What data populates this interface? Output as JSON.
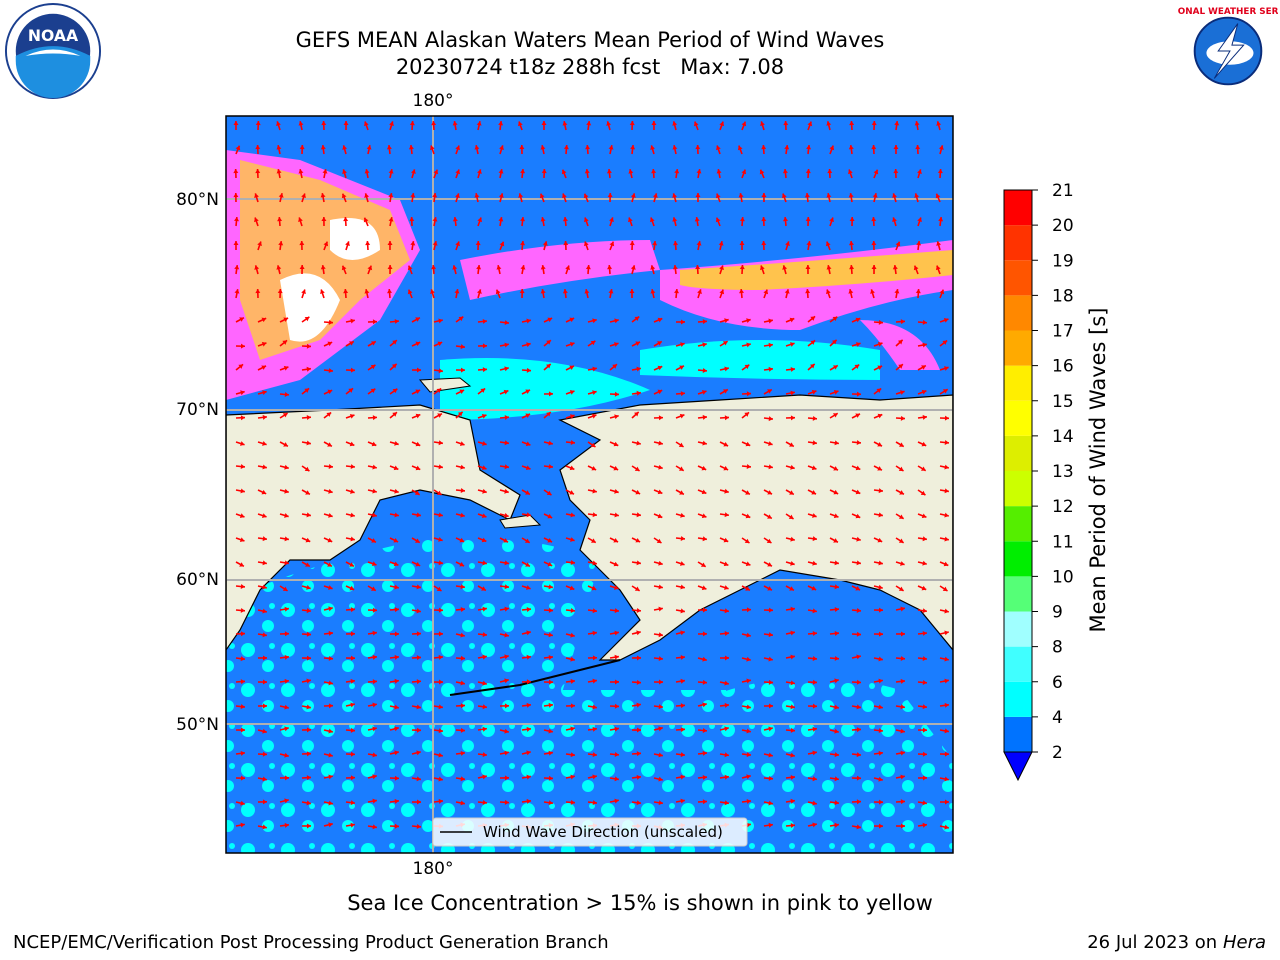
{
  "header": {
    "title_line1": "GEFS MEAN Alaskan Waters Mean Period of Wind Waves",
    "title_line2": "20230724 t18z 288h fcst   Max: 7.08"
  },
  "logos": {
    "left": "noaa-logo",
    "right": "nws-logo",
    "noaa_text": "NOAA",
    "nws_text": "NATIONAL WEATHER SERVICE"
  },
  "map": {
    "top_lon_label": "180°",
    "bottom_lon_label": "180°",
    "lat_labels": [
      "80°N",
      "70°N",
      "60°N",
      "50°N"
    ],
    "legend_label": "Wind Wave Direction (unscaled)",
    "colors": {
      "ocean_dark": "#1a7dff",
      "ocean_light": "#00ffff",
      "land": "#efefdc",
      "arrows": "#ff0000",
      "ice_pink": "#ff66ff",
      "ice_orange": "#ffc34d",
      "grid": "#b0b0b0"
    }
  },
  "colorbar": {
    "label": "Mean Period of Wind Waves [s]",
    "ticks": [
      "2",
      "4",
      "6",
      "8",
      "9",
      "10",
      "11",
      "12",
      "13",
      "14",
      "15",
      "16",
      "17",
      "18",
      "19",
      "20",
      "21"
    ],
    "bins": [
      {
        "from": 2,
        "to": 4,
        "color": "#0073ff"
      },
      {
        "from": 4,
        "to": 6,
        "color": "#00ffff"
      },
      {
        "from": 6,
        "to": 8,
        "color": "#40ffff"
      },
      {
        "from": 8,
        "to": 9,
        "color": "#a0ffff"
      },
      {
        "from": 9,
        "to": 10,
        "color": "#55ff77"
      },
      {
        "from": 10,
        "to": 11,
        "color": "#00ee00"
      },
      {
        "from": 11,
        "to": 12,
        "color": "#55ee00"
      },
      {
        "from": 12,
        "to": 13,
        "color": "#ccff00"
      },
      {
        "from": 13,
        "to": 14,
        "color": "#ddee00"
      },
      {
        "from": 14,
        "to": 15,
        "color": "#ffff00"
      },
      {
        "from": 15,
        "to": 16,
        "color": "#ffee00"
      },
      {
        "from": 16,
        "to": 17,
        "color": "#ffaa00"
      },
      {
        "from": 17,
        "to": 18,
        "color": "#ff8800"
      },
      {
        "from": 18,
        "to": 19,
        "color": "#ff5500"
      },
      {
        "from": 19,
        "to": 20,
        "color": "#ff3300"
      },
      {
        "from": 20,
        "to": 21,
        "color": "#ff0000"
      }
    ],
    "under_color": "#0000ff"
  },
  "notes": {
    "ice_note": "Sea Ice Concentration > 15% is shown in pink to yellow"
  },
  "footer": {
    "left": "NCEP/EMC/Verification Post Processing Product Generation Branch",
    "date": "26 Jul 2023 on ",
    "host": "Hera"
  }
}
